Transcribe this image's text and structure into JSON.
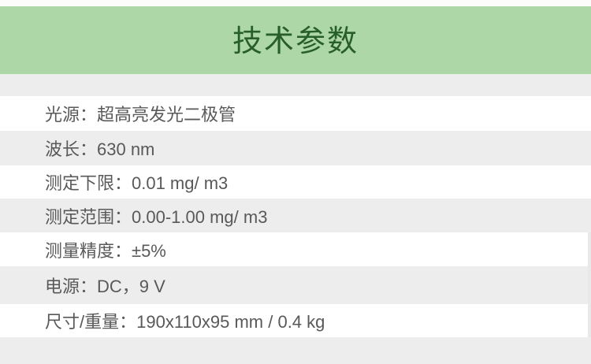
{
  "header": {
    "title": "技术参数"
  },
  "colors": {
    "banner_bg": "#aed7a8",
    "banner_text": "#285f28",
    "row_alt_bg": "#ededed",
    "row_text": "#595959",
    "page_top_strip": "#fcfcfa",
    "scrollbar_thumb": "#e9e9e9"
  },
  "table": {
    "separator": "：",
    "rows": [
      {
        "label": "光源",
        "value": "超高亮发光二极管",
        "text": "光源：超高亮发光二极管"
      },
      {
        "label": "波长",
        "value": "630 nm",
        "text": "波长：630 nm"
      },
      {
        "label": "测定下限",
        "value": "0.01 mg/ m3",
        "text": "测定下限：0.01 mg/ m3"
      },
      {
        "label": "测定范围",
        "value": "0.00-1.00 mg/ m3",
        "text": "测定范围：0.00-1.00 mg/ m3"
      },
      {
        "label": "测量精度",
        "value": "±5%",
        "text": "测量精度：±5%"
      },
      {
        "label": "电源",
        "value": "DC，9 V",
        "text": "电源：DC，9 V"
      },
      {
        "label": "尺寸/重量",
        "value": "190x110x95 mm / 0.4 kg",
        "text": "尺寸/重量：190x110x95 mm / 0.4 kg"
      }
    ]
  }
}
